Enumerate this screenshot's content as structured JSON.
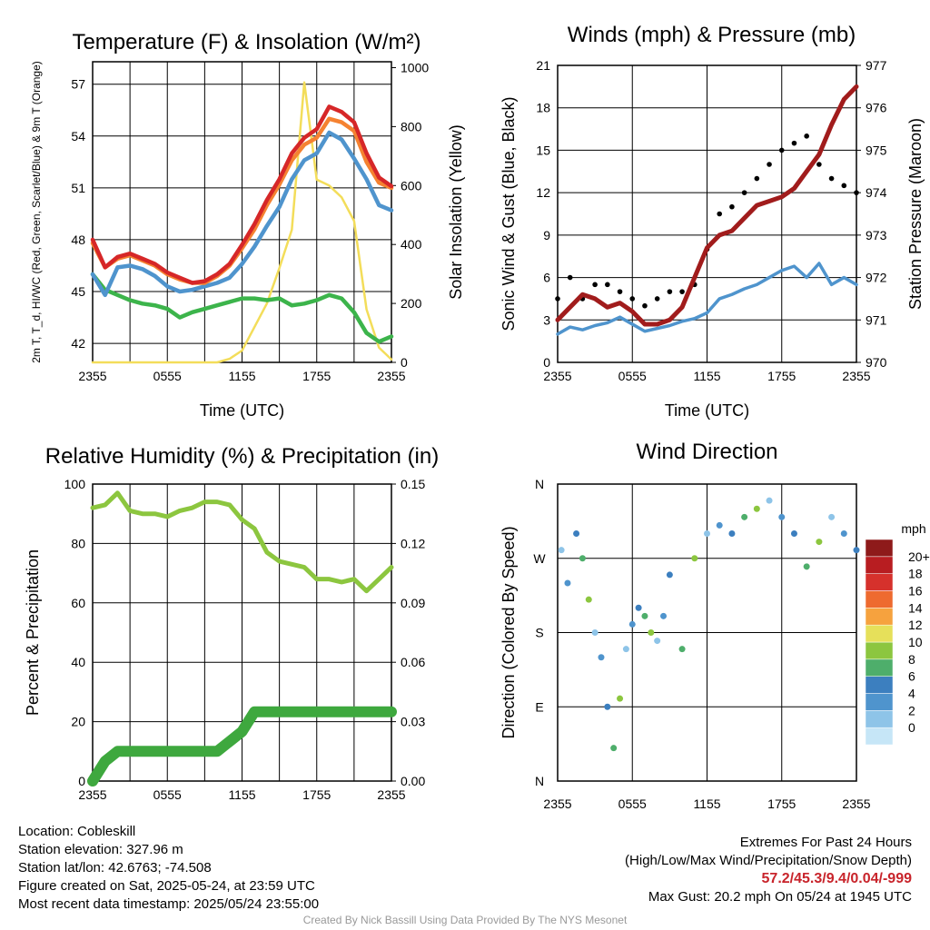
{
  "chart_data": [
    {
      "type": "line",
      "title": "Temperature (F) & Insolation (W/m²)",
      "xlabel": "Time (UTC)",
      "ylabel": "2m T, T_d, HI/WC (Red, Green, Scarlet/Blue) & 9m T (Orange)",
      "y2label": "Solar Insolation (Yellow)",
      "x_ticks": [
        "2355",
        "0555",
        "1155",
        "1755",
        "2355"
      ],
      "y_ticks": [
        42,
        45,
        48,
        51,
        54,
        57
      ],
      "y2_ticks": [
        0,
        200,
        400,
        600,
        800,
        1000
      ],
      "ylim": [
        40.9,
        58.3
      ],
      "y2lim": [
        0,
        1020
      ],
      "hours": [
        0,
        1,
        2,
        3,
        4,
        5,
        6,
        7,
        8,
        9,
        10,
        11,
        12,
        13,
        14,
        15,
        16,
        17,
        18,
        19,
        20,
        21,
        22,
        23,
        24
      ],
      "series": [
        {
          "name": "2m T",
          "color": "#d62728",
          "values": [
            48.0,
            46.4,
            47.0,
            47.2,
            46.9,
            46.6,
            46.1,
            45.8,
            45.5,
            45.6,
            46.0,
            46.6,
            47.7,
            48.9,
            50.3,
            51.5,
            53.0,
            53.9,
            54.4,
            55.7,
            55.4,
            54.8,
            53.0,
            51.6,
            51.1
          ]
        },
        {
          "name": "9m T",
          "color": "#f58231",
          "values": [
            47.8,
            46.4,
            46.9,
            47.1,
            46.8,
            46.5,
            46.0,
            45.7,
            45.5,
            45.5,
            45.9,
            46.5,
            47.5,
            48.6,
            50.0,
            51.2,
            52.6,
            53.5,
            53.9,
            55.0,
            54.8,
            54.3,
            52.5,
            51.3,
            51.0
          ]
        },
        {
          "name": "HI/WC",
          "color": "#4f94cd",
          "values": [
            46.0,
            44.8,
            46.4,
            46.5,
            46.3,
            45.9,
            45.3,
            45.0,
            45.1,
            45.3,
            45.5,
            45.8,
            46.6,
            47.6,
            48.8,
            49.9,
            51.5,
            52.6,
            53.0,
            54.2,
            53.8,
            52.7,
            51.5,
            50.0,
            49.7
          ]
        },
        {
          "name": "T_d",
          "color": "#3cb44b",
          "values": [
            46.0,
            45.1,
            44.8,
            44.5,
            44.3,
            44.2,
            44.0,
            43.5,
            43.8,
            44.0,
            44.2,
            44.4,
            44.6,
            44.6,
            44.5,
            44.6,
            44.2,
            44.3,
            44.5,
            44.8,
            44.6,
            43.8,
            42.6,
            42.1,
            42.4
          ]
        },
        {
          "name": "Solar",
          "color": "#f3dd5a",
          "values": [
            0,
            0,
            0,
            0,
            0,
            0,
            0,
            0,
            0,
            0,
            0,
            12,
            40,
            120,
            200,
            320,
            450,
            950,
            620,
            600,
            560,
            480,
            180,
            50,
            10
          ]
        }
      ]
    },
    {
      "type": "line",
      "title": "Winds (mph) & Pressure (mb)",
      "xlabel": "Time (UTC)",
      "ylabel": "Sonic Wind & Gust (Blue, Black)",
      "y2label": "Station Pressure (Maroon)",
      "x_ticks": [
        "2355",
        "0555",
        "1155",
        "1755",
        "2355"
      ],
      "y_ticks": [
        0,
        3,
        6,
        9,
        12,
        15,
        18,
        21
      ],
      "y2_ticks": [
        970,
        971,
        972,
        973,
        974,
        975,
        976,
        977
      ],
      "ylim": [
        0,
        21
      ],
      "y2lim": [
        970,
        977
      ],
      "hours": [
        0,
        1,
        2,
        3,
        4,
        5,
        6,
        7,
        8,
        9,
        10,
        11,
        12,
        13,
        14,
        15,
        16,
        17,
        18,
        19,
        20,
        21,
        22,
        23,
        24
      ],
      "series": [
        {
          "name": "Pressure",
          "color": "#a11c1c",
          "values": [
            971.0,
            971.3,
            971.6,
            971.5,
            971.3,
            971.4,
            971.2,
            970.9,
            970.9,
            971.0,
            971.3,
            972.0,
            972.7,
            973.0,
            973.1,
            973.4,
            973.7,
            973.8,
            973.9,
            974.1,
            974.5,
            974.9,
            975.6,
            976.2,
            976.5
          ]
        },
        {
          "name": "Wind",
          "color": "#4f94cd",
          "values": [
            2.0,
            2.5,
            2.3,
            2.6,
            2.8,
            3.2,
            2.7,
            2.2,
            2.4,
            2.6,
            2.9,
            3.1,
            3.5,
            4.5,
            4.8,
            5.2,
            5.5,
            6.0,
            6.5,
            6.8,
            6.0,
            7.0,
            5.5,
            6.0,
            5.5
          ]
        },
        {
          "name": "Gust",
          "color": "#000000",
          "values": [
            4.5,
            6.0,
            4.5,
            5.5,
            5.5,
            5.0,
            4.5,
            4.0,
            4.5,
            5.0,
            5.0,
            5.5,
            8.0,
            10.5,
            11.0,
            12.0,
            13.0,
            14.0,
            15.0,
            15.5,
            16.0,
            14.0,
            13.0,
            12.5,
            12.0
          ]
        }
      ]
    },
    {
      "type": "line",
      "title": "Relative Humidity (%) & Precipitation (in)",
      "xlabel": "",
      "ylabel": "Percent & Precipitation",
      "x_ticks": [
        "2355",
        "0555",
        "1155",
        "1755",
        "2355"
      ],
      "y_ticks": [
        0,
        20,
        40,
        60,
        80,
        100
      ],
      "y2_ticks": [
        "0.00",
        "0.03",
        "0.06",
        "0.09",
        "0.12",
        "0.15"
      ],
      "ylim": [
        0,
        100
      ],
      "y2lim": [
        0,
        0.15
      ],
      "hours": [
        0,
        1,
        2,
        3,
        4,
        5,
        6,
        7,
        8,
        9,
        10,
        11,
        12,
        13,
        14,
        15,
        16,
        17,
        18,
        19,
        20,
        21,
        22,
        23,
        24
      ],
      "series": [
        {
          "name": "RH",
          "color": "#8cc63f",
          "values": [
            92,
            93,
            97,
            91,
            90,
            90,
            89,
            91,
            92,
            94,
            94,
            93,
            88,
            85,
            77,
            74,
            73,
            72,
            68,
            68,
            67,
            68,
            64,
            68,
            72
          ]
        },
        {
          "name": "Precipitation",
          "color": "#3ea83e",
          "values": [
            0.0,
            0.01,
            0.015,
            0.015,
            0.015,
            0.015,
            0.015,
            0.015,
            0.015,
            0.015,
            0.015,
            0.02,
            0.025,
            0.035,
            0.035,
            0.035,
            0.035,
            0.035,
            0.035,
            0.035,
            0.035,
            0.035,
            0.035,
            0.035,
            0.035
          ]
        }
      ]
    },
    {
      "type": "scatter",
      "title": "Wind Direction",
      "ylabel": "Direction (Colored By Speed)",
      "x_ticks": [
        "2355",
        "0555",
        "1155",
        "1755",
        "2355"
      ],
      "y_ticks": [
        "N",
        "E",
        "S",
        "W",
        "N"
      ],
      "ylim": [
        0,
        360
      ],
      "points": [
        [
          0.3,
          280
        ],
        [
          0.8,
          240
        ],
        [
          1.5,
          300
        ],
        [
          2.0,
          270
        ],
        [
          2.5,
          220
        ],
        [
          3.0,
          180
        ],
        [
          3.5,
          150
        ],
        [
          4.0,
          90
        ],
        [
          4.5,
          40
        ],
        [
          5.0,
          100
        ],
        [
          5.5,
          160
        ],
        [
          6.0,
          190
        ],
        [
          6.5,
          210
        ],
        [
          7.0,
          200
        ],
        [
          7.5,
          180
        ],
        [
          8.0,
          170
        ],
        [
          8.5,
          200
        ],
        [
          9.0,
          250
        ],
        [
          10.0,
          160
        ],
        [
          11.0,
          270
        ],
        [
          12.0,
          300
        ],
        [
          13.0,
          310
        ],
        [
          14.0,
          300
        ],
        [
          15.0,
          320
        ],
        [
          16.0,
          330
        ],
        [
          17.0,
          340
        ],
        [
          18.0,
          320
        ],
        [
          19.0,
          300
        ],
        [
          20.0,
          260
        ],
        [
          21.0,
          290
        ],
        [
          22.0,
          320
        ],
        [
          23.0,
          300
        ],
        [
          24.0,
          280
        ]
      ],
      "colorbar": {
        "title": "mph",
        "labels": [
          "0",
          "2",
          "4",
          "6",
          "8",
          "10",
          "12",
          "14",
          "16",
          "18",
          "20+"
        ],
        "colors": [
          "#c6e6f7",
          "#8ec4e8",
          "#4f94cd",
          "#3c7fbf",
          "#4eae6b",
          "#8cc63f",
          "#e6e05a",
          "#f6a23e",
          "#ee6a2f",
          "#d6312c",
          "#b81d21",
          "#8e1a1a"
        ]
      }
    }
  ],
  "footer": {
    "location": "Location: Cobleskill",
    "elevation": "Station elevation: 327.96 m",
    "latlon": "Station lat/lon: 42.6763; -74.508",
    "created": "Figure created on Sat, 2025-05-24, at 23:59 UTC",
    "recent": "Most recent data timestamp: 2025/05/24 23:55:00",
    "extremes_title": "Extremes For Past 24 Hours",
    "extremes_sub": "(High/Low/Max Wind/Precipitation/Snow Depth)",
    "extremes_values": "57.2/45.3/9.4/0.04/-999",
    "max_gust": "Max Gust: 20.2 mph On 05/24 at 1945 UTC",
    "credit": "Created By Nick Bassill Using Data Provided By The NYS Mesonet"
  }
}
